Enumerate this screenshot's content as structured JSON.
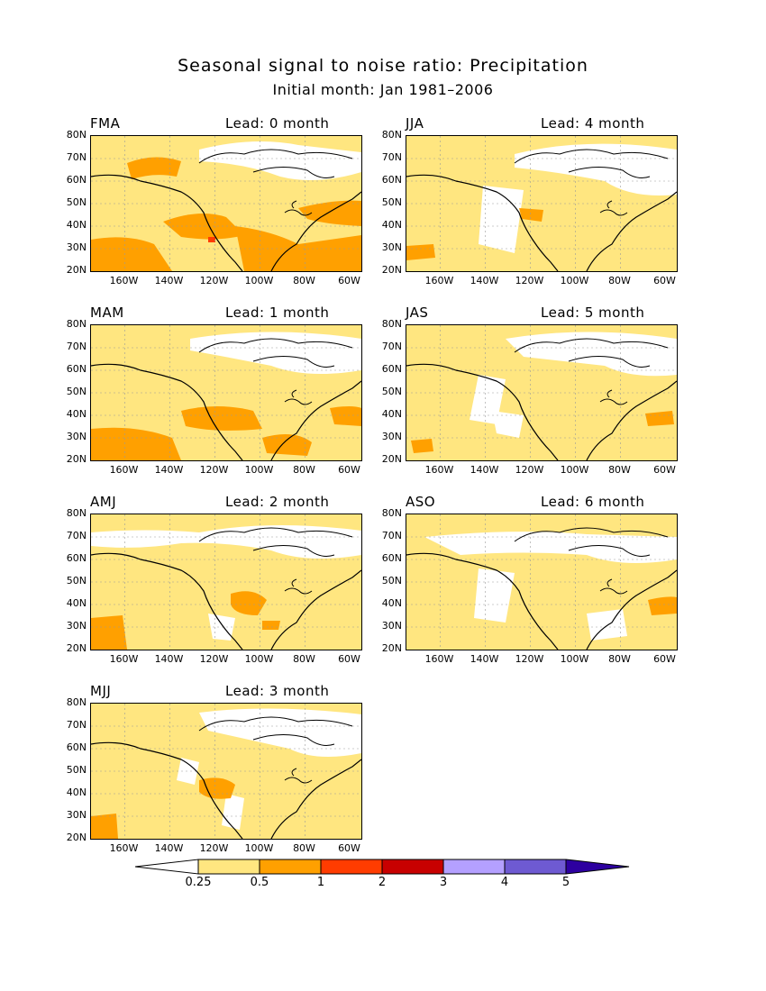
{
  "title": "Seasonal signal to noise ratio: Precipitation",
  "subtitle": "Initial month: Jan 1981–2006",
  "y_ticks": [
    "80N",
    "70N",
    "60N",
    "50N",
    "40N",
    "30N",
    "20N"
  ],
  "x_ticks": [
    "160W",
    "140W",
    "120W",
    "100W",
    "80W",
    "60W"
  ],
  "panels": [
    {
      "season": "FMA",
      "lead": "Lead: 0 month"
    },
    {
      "season": "JJA",
      "lead": "Lead: 4 month"
    },
    {
      "season": "MAM",
      "lead": "Lead: 1 month"
    },
    {
      "season": "JAS",
      "lead": "Lead: 5 month"
    },
    {
      "season": "AMJ",
      "lead": "Lead: 2 month"
    },
    {
      "season": "ASO",
      "lead": "Lead: 6 month"
    },
    {
      "season": "MJJ",
      "lead": "Lead: 3 month"
    }
  ],
  "colorbar": {
    "labels": [
      "0.25",
      "0.5",
      "1",
      "2",
      "3",
      "4",
      "5"
    ],
    "colors": [
      "#ffffff",
      "#ffe680",
      "#ffa000",
      "#ff3c00",
      "#c80000",
      "#b4a0ff",
      "#6e5ad2",
      "#2d00a0"
    ]
  }
}
